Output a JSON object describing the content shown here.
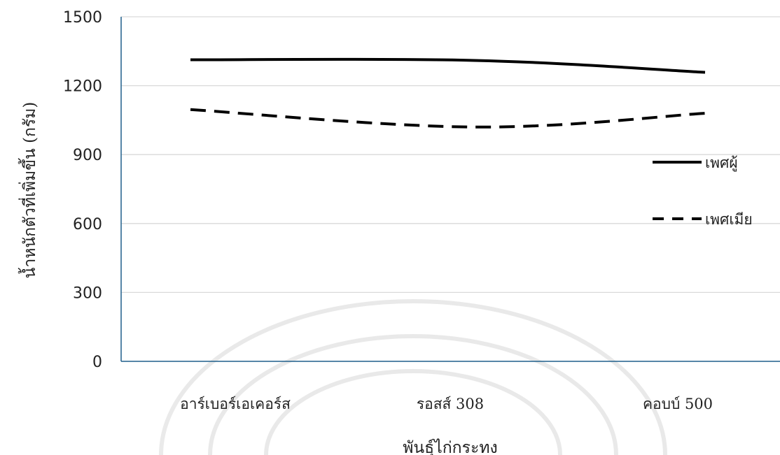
{
  "chart_data": {
    "type": "line",
    "categories": [
      "อาร์เบอร์เอเคอร์ส",
      "รอสส์ 308",
      "คอบบ์ 500"
    ],
    "series": [
      {
        "name": "เพศผู้",
        "values": [
          1313,
          1310,
          1258
        ],
        "style": "solid",
        "color": "#000000"
      },
      {
        "name": "เพศเมีย",
        "values": [
          1096,
          1020,
          1080
        ],
        "style": "dashed",
        "color": "#000000"
      }
    ],
    "xlabel": "พันธุ์ไก่กระทง",
    "ylabel": "น้ำหนักตัวที่เพิ่มขึ้น (กรัม)",
    "ylim": [
      0,
      1500
    ],
    "yticks": [
      0,
      300,
      600,
      900,
      1200,
      1500
    ],
    "grid": true,
    "legend_position": "right",
    "colors": {
      "axis": "#1f5f8b",
      "grid": "#d9d9d9",
      "line": "#000000"
    }
  }
}
